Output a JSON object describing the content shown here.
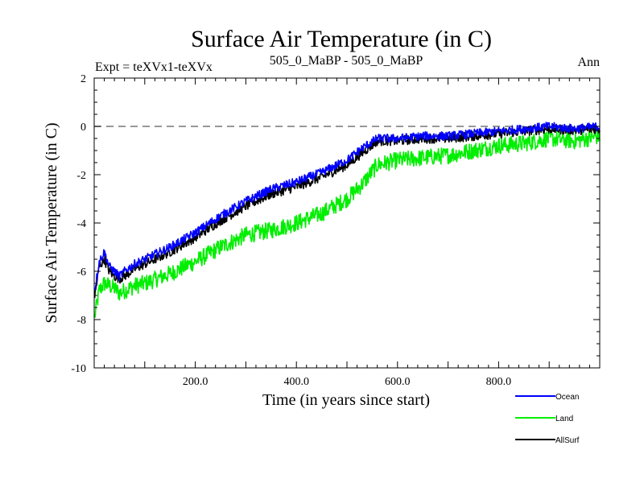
{
  "chart_data": {
    "type": "line",
    "title": "Surface Air Temperature (in C)",
    "subtitle_left": "Expt = teXVx1-teXVx",
    "subtitle_center": "505_0_MaBP - 505_0_MaBP",
    "subtitle_right": "Ann",
    "xlabel": "Time (in years since start)",
    "ylabel": "Surface Air Temperature (in C)",
    "xlim": [
      0,
      1000
    ],
    "ylim": [
      -10,
      2
    ],
    "x_ticks": [
      200,
      400,
      600,
      800
    ],
    "x_tick_labels": [
      "200.0",
      "400.0",
      "600.0",
      "800.0"
    ],
    "y_ticks": [
      -10,
      -8,
      -6,
      -4,
      -2,
      0,
      2
    ],
    "y_tick_labels": [
      "-10",
      "-8",
      "-6",
      "-4",
      "-2",
      "0",
      "2"
    ],
    "reference_line": 0,
    "colors": {
      "Ocean": "#0000ff",
      "Land": "#00ee00",
      "AllSurf": "#000000",
      "reference": "#777777"
    },
    "series": [
      {
        "name": "Ocean",
        "x": [
          0,
          10,
          20,
          30,
          40,
          50,
          60,
          80,
          100,
          150,
          200,
          250,
          300,
          350,
          400,
          450,
          500,
          530,
          560,
          600,
          650,
          700,
          750,
          800,
          850,
          900,
          950,
          1000
        ],
        "values": [
          -6.9,
          -5.6,
          -5.2,
          -5.8,
          -6.0,
          -6.2,
          -6.0,
          -5.7,
          -5.5,
          -5.0,
          -4.4,
          -3.7,
          -3.1,
          -2.6,
          -2.3,
          -1.9,
          -1.4,
          -0.9,
          -0.5,
          -0.5,
          -0.4,
          -0.4,
          -0.3,
          -0.2,
          -0.1,
          0.0,
          -0.1,
          0.0
        ]
      },
      {
        "name": "Land",
        "x": [
          0,
          10,
          20,
          30,
          40,
          50,
          60,
          80,
          100,
          150,
          200,
          250,
          300,
          350,
          400,
          450,
          500,
          530,
          560,
          600,
          650,
          700,
          750,
          800,
          850,
          900,
          950,
          1000
        ],
        "values": [
          -8.0,
          -6.8,
          -6.5,
          -6.6,
          -6.7,
          -6.9,
          -6.8,
          -6.6,
          -6.5,
          -6.1,
          -5.6,
          -5.0,
          -4.5,
          -4.3,
          -4.0,
          -3.6,
          -3.0,
          -2.4,
          -1.6,
          -1.4,
          -1.3,
          -1.2,
          -1.0,
          -0.8,
          -0.7,
          -0.5,
          -0.6,
          -0.4
        ]
      },
      {
        "name": "AllSurf",
        "x": [
          0,
          10,
          20,
          30,
          40,
          50,
          60,
          80,
          100,
          150,
          200,
          250,
          300,
          350,
          400,
          450,
          500,
          530,
          560,
          600,
          650,
          700,
          750,
          800,
          850,
          900,
          950,
          1000
        ],
        "values": [
          -7.2,
          -5.8,
          -5.5,
          -6.0,
          -6.2,
          -6.3,
          -6.2,
          -5.9,
          -5.7,
          -5.2,
          -4.6,
          -3.9,
          -3.3,
          -2.8,
          -2.5,
          -2.1,
          -1.6,
          -1.1,
          -0.6,
          -0.6,
          -0.5,
          -0.5,
          -0.4,
          -0.3,
          -0.2,
          -0.1,
          -0.15,
          -0.1
        ]
      }
    ],
    "noise_amplitude": {
      "Ocean": 0.18,
      "Land": 0.35,
      "AllSurf": 0.2
    },
    "legend": {
      "placement": "bottom-right",
      "entries": [
        "Ocean",
        "Land",
        "AllSurf"
      ]
    }
  }
}
